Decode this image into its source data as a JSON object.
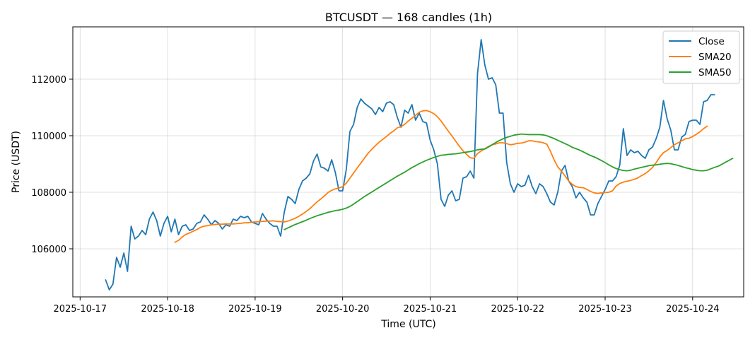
{
  "chart_data": {
    "type": "line",
    "title": "BTCUSDT — 168 candles (1h)",
    "xlabel": "Time (UTC)",
    "ylabel": "Price (USDT)",
    "x_ticks": [
      "2025-10-17",
      "2025-10-18",
      "2025-10-19",
      "2025-10-20",
      "2025-10-21",
      "2025-10-22",
      "2025-10-23",
      "2025-10-24"
    ],
    "y_ticks": [
      106000,
      108000,
      110000,
      112000
    ],
    "xlim": [
      "2025-10-16 22:00",
      "2025-10-24 14:00"
    ],
    "ylim": [
      104300,
      113850
    ],
    "grid": true,
    "legend_position": "top-right",
    "x_start": "2025-10-17 07:00",
    "x_step_hours": 1,
    "series": [
      {
        "name": "Close",
        "color": "#1f77b4",
        "values": [
          104900,
          104550,
          104750,
          105700,
          105350,
          105850,
          105200,
          106800,
          106350,
          106450,
          106650,
          106500,
          107050,
          107300,
          107000,
          106450,
          106900,
          107150,
          106600,
          107050,
          106500,
          106800,
          106850,
          106650,
          106700,
          106900,
          106950,
          107200,
          107050,
          106850,
          107000,
          106900,
          106700,
          106850,
          106800,
          107050,
          107000,
          107150,
          107100,
          107150,
          106950,
          106900,
          106850,
          107250,
          107050,
          106900,
          106800,
          106800,
          106450,
          107300,
          107850,
          107750,
          107600,
          108100,
          108400,
          108500,
          108650,
          109100,
          109350,
          108900,
          108850,
          108750,
          109150,
          108700,
          108050,
          108050,
          108800,
          110150,
          110400,
          111000,
          111300,
          111150,
          111050,
          110950,
          110750,
          111000,
          110850,
          111150,
          111200,
          111100,
          110650,
          110300,
          110900,
          110800,
          111100,
          110550,
          110800,
          110500,
          110450,
          109850,
          109500,
          109000,
          107750,
          107500,
          107900,
          108050,
          107700,
          107750,
          108500,
          108550,
          108750,
          108500,
          112200,
          113400,
          112500,
          112000,
          112050,
          111800,
          110800,
          110800,
          109050,
          108300,
          108000,
          108300,
          108200,
          108250,
          108600,
          108200,
          107950,
          108300,
          108200,
          107950,
          107650,
          107550,
          108000,
          108750,
          108950,
          108400,
          108200,
          107800,
          108000,
          107800,
          107650,
          107200,
          107200,
          107600,
          107850,
          108100,
          108400,
          108400,
          108550,
          108950,
          110250,
          109300,
          109500,
          109400,
          109450,
          109300,
          109200,
          109500,
          109600,
          109900,
          110300,
          111250,
          110600,
          110200,
          109500,
          109500,
          109950,
          110050,
          110500,
          110550,
          110550,
          110400,
          111200,
          111250,
          111450,
          111450
        ]
      },
      {
        "name": "SMA20",
        "color": "#ff7f0e",
        "values": [
          null,
          null,
          null,
          null,
          null,
          null,
          null,
          null,
          null,
          null,
          null,
          null,
          null,
          null,
          null,
          null,
          null,
          null,
          null,
          106230,
          106300,
          106420,
          106510,
          106560,
          106620,
          106680,
          106760,
          106800,
          106820,
          106850,
          106860,
          106870,
          106870,
          106880,
          106880,
          106880,
          106890,
          106900,
          106920,
          106920,
          106940,
          106950,
          106960,
          106970,
          106980,
          106980,
          106990,
          106970,
          106960,
          106950,
          106980,
          107030,
          107080,
          107150,
          107230,
          107320,
          107420,
          107540,
          107660,
          107760,
          107870,
          107990,
          108070,
          108120,
          108150,
          108200,
          108320,
          108500,
          108680,
          108860,
          109030,
          109210,
          109380,
          109520,
          109650,
          109770,
          109870,
          109970,
          110080,
          110170,
          110280,
          110320,
          110400,
          110520,
          110620,
          110720,
          110830,
          110880,
          110890,
          110850,
          110780,
          110670,
          110520,
          110340,
          110160,
          109990,
          109810,
          109630,
          109470,
          109340,
          109220,
          109200,
          109370,
          109460,
          109540,
          109620,
          109680,
          109710,
          109750,
          109750,
          109720,
          109680,
          109700,
          109730,
          109740,
          109770,
          109820,
          109820,
          109790,
          109780,
          109750,
          109700,
          109450,
          109150,
          108900,
          108750,
          108580,
          108400,
          108280,
          108200,
          108170,
          108160,
          108100,
          108030,
          107980,
          107960,
          107980,
          107990,
          108000,
          108050,
          108220,
          108310,
          108360,
          108390,
          108420,
          108460,
          108510,
          108590,
          108660,
          108760,
          108880,
          109050,
          109250,
          109400,
          109480,
          109580,
          109680,
          109750,
          109820,
          109890,
          109910,
          109970,
          110050,
          110140,
          110250,
          110340
        ]
      },
      {
        "name": "SMA50",
        "color": "#2ca02c",
        "values": [
          null,
          null,
          null,
          null,
          null,
          null,
          null,
          null,
          null,
          null,
          null,
          null,
          null,
          null,
          null,
          null,
          null,
          null,
          null,
          null,
          null,
          null,
          null,
          null,
          null,
          null,
          null,
          null,
          null,
          null,
          null,
          null,
          null,
          null,
          null,
          null,
          null,
          null,
          null,
          null,
          null,
          null,
          null,
          null,
          null,
          null,
          null,
          null,
          null,
          106680,
          106740,
          106800,
          106860,
          106910,
          106960,
          107010,
          107070,
          107120,
          107170,
          107210,
          107250,
          107290,
          107320,
          107350,
          107370,
          107400,
          107440,
          107500,
          107580,
          107670,
          107760,
          107850,
          107930,
          108010,
          108090,
          108170,
          108250,
          108330,
          108410,
          108490,
          108570,
          108640,
          108710,
          108790,
          108870,
          108940,
          109010,
          109070,
          109130,
          109180,
          109230,
          109270,
          109310,
          109320,
          109340,
          109350,
          109360,
          109380,
          109400,
          109420,
          109440,
          109470,
          109500,
          109520,
          109530,
          109600,
          109680,
          109760,
          109830,
          109890,
          109940,
          109980,
          110020,
          110040,
          110060,
          110050,
          110040,
          110040,
          110040,
          110040,
          110030,
          110000,
          109950,
          109900,
          109840,
          109780,
          109720,
          109660,
          109590,
          109540,
          109490,
          109430,
          109360,
          109300,
          109250,
          109190,
          109120,
          109050,
          108970,
          108900,
          108840,
          108800,
          108770,
          108760,
          108780,
          108820,
          108850,
          108880,
          108910,
          108940,
          108960,
          108970,
          108990,
          109010,
          109020,
          109010,
          108980,
          108950,
          108910,
          108870,
          108840,
          108800,
          108780,
          108760,
          108760,
          108780,
          108830,
          108880,
          108920,
          108990,
          109060,
          109130,
          109200
        ]
      }
    ]
  }
}
